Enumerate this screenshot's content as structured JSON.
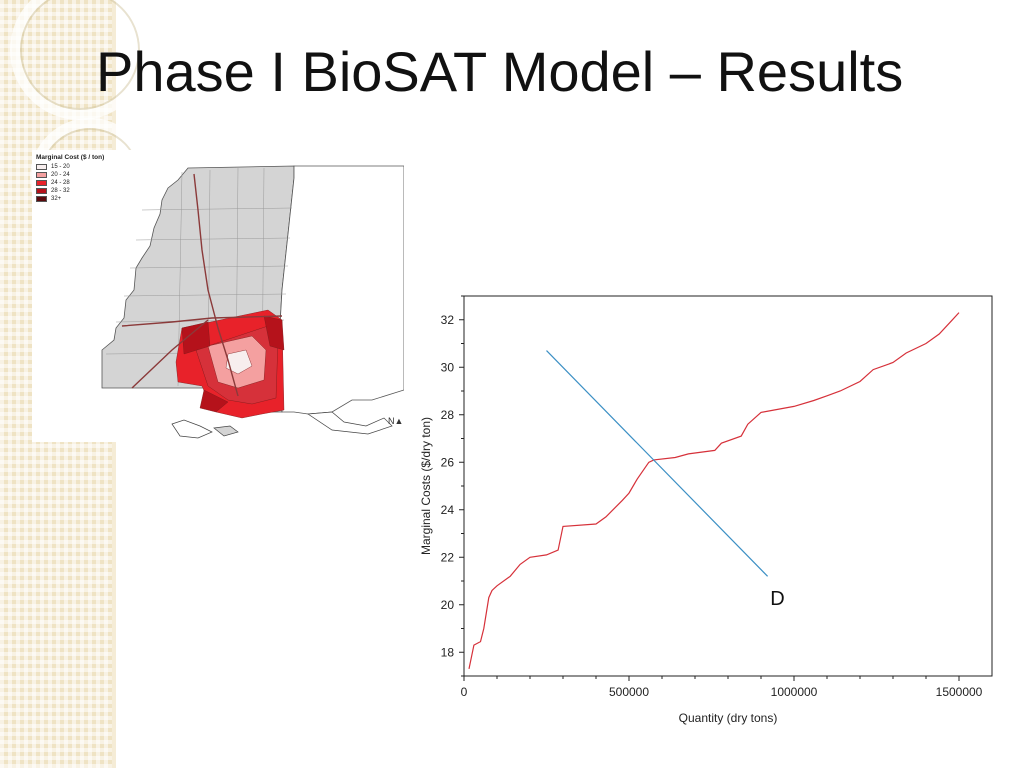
{
  "slide": {
    "title": "Phase I BioSAT Model – Results"
  },
  "map": {
    "legend_title": "Marginal Cost ($ / ton)",
    "legend_items": [
      {
        "label": "15 - 20",
        "color": "#f7eeee"
      },
      {
        "label": "20 - 24",
        "color": "#f4a0a0"
      },
      {
        "label": "24 - 28",
        "color": "#e8222a"
      },
      {
        "label": "28 - 32",
        "color": "#b5121b"
      },
      {
        "label": "32+",
        "color": "#5a0a0d"
      }
    ],
    "base_color": "#d4d4d4",
    "road_color": "#8b3a3a",
    "north_label": "N"
  },
  "chart_data": {
    "type": "line",
    "xlabel": "Quantity (dry tons)",
    "ylabel": "Marginal Costs ($/dry ton)",
    "xlim": [
      0,
      1600000
    ],
    "ylim": [
      17,
      33
    ],
    "xticks": [
      0,
      500000,
      1000000,
      1500000
    ],
    "xtick_labels": [
      "0",
      "500000",
      "1000000",
      "1500000"
    ],
    "yticks": [
      18,
      20,
      22,
      24,
      26,
      28,
      30,
      32
    ],
    "grid": false,
    "series": [
      {
        "role": "supply",
        "color": "#d6313a",
        "x": [
          15000,
          30000,
          50000,
          60000,
          75000,
          85000,
          100000,
          140000,
          170000,
          200000,
          250000,
          285000,
          300000,
          400000,
          430000,
          480000,
          500000,
          525000,
          560000,
          575000,
          640000,
          680000,
          760000,
          780000,
          840000,
          860000,
          900000,
          940000,
          1000000,
          1060000,
          1100000,
          1140000,
          1200000,
          1240000,
          1300000,
          1340000,
          1400000,
          1440000,
          1480000,
          1500000
        ],
        "y": [
          17.3,
          18.3,
          18.45,
          19.0,
          20.3,
          20.6,
          20.8,
          21.2,
          21.7,
          22.0,
          22.1,
          22.3,
          23.3,
          23.4,
          23.7,
          24.4,
          24.7,
          25.3,
          26.0,
          26.1,
          26.2,
          26.35,
          26.5,
          26.8,
          27.1,
          27.6,
          28.1,
          28.2,
          28.35,
          28.6,
          28.8,
          29.0,
          29.4,
          29.9,
          30.2,
          30.6,
          31.0,
          31.4,
          32.0,
          32.3
        ]
      },
      {
        "name": "D",
        "role": "demand",
        "color": "#3b8fc4",
        "x": [
          250000,
          920000
        ],
        "y": [
          30.7,
          21.2
        ]
      }
    ],
    "annotations": [
      {
        "text": "D",
        "x": 950000,
        "y": 20.0
      }
    ]
  }
}
